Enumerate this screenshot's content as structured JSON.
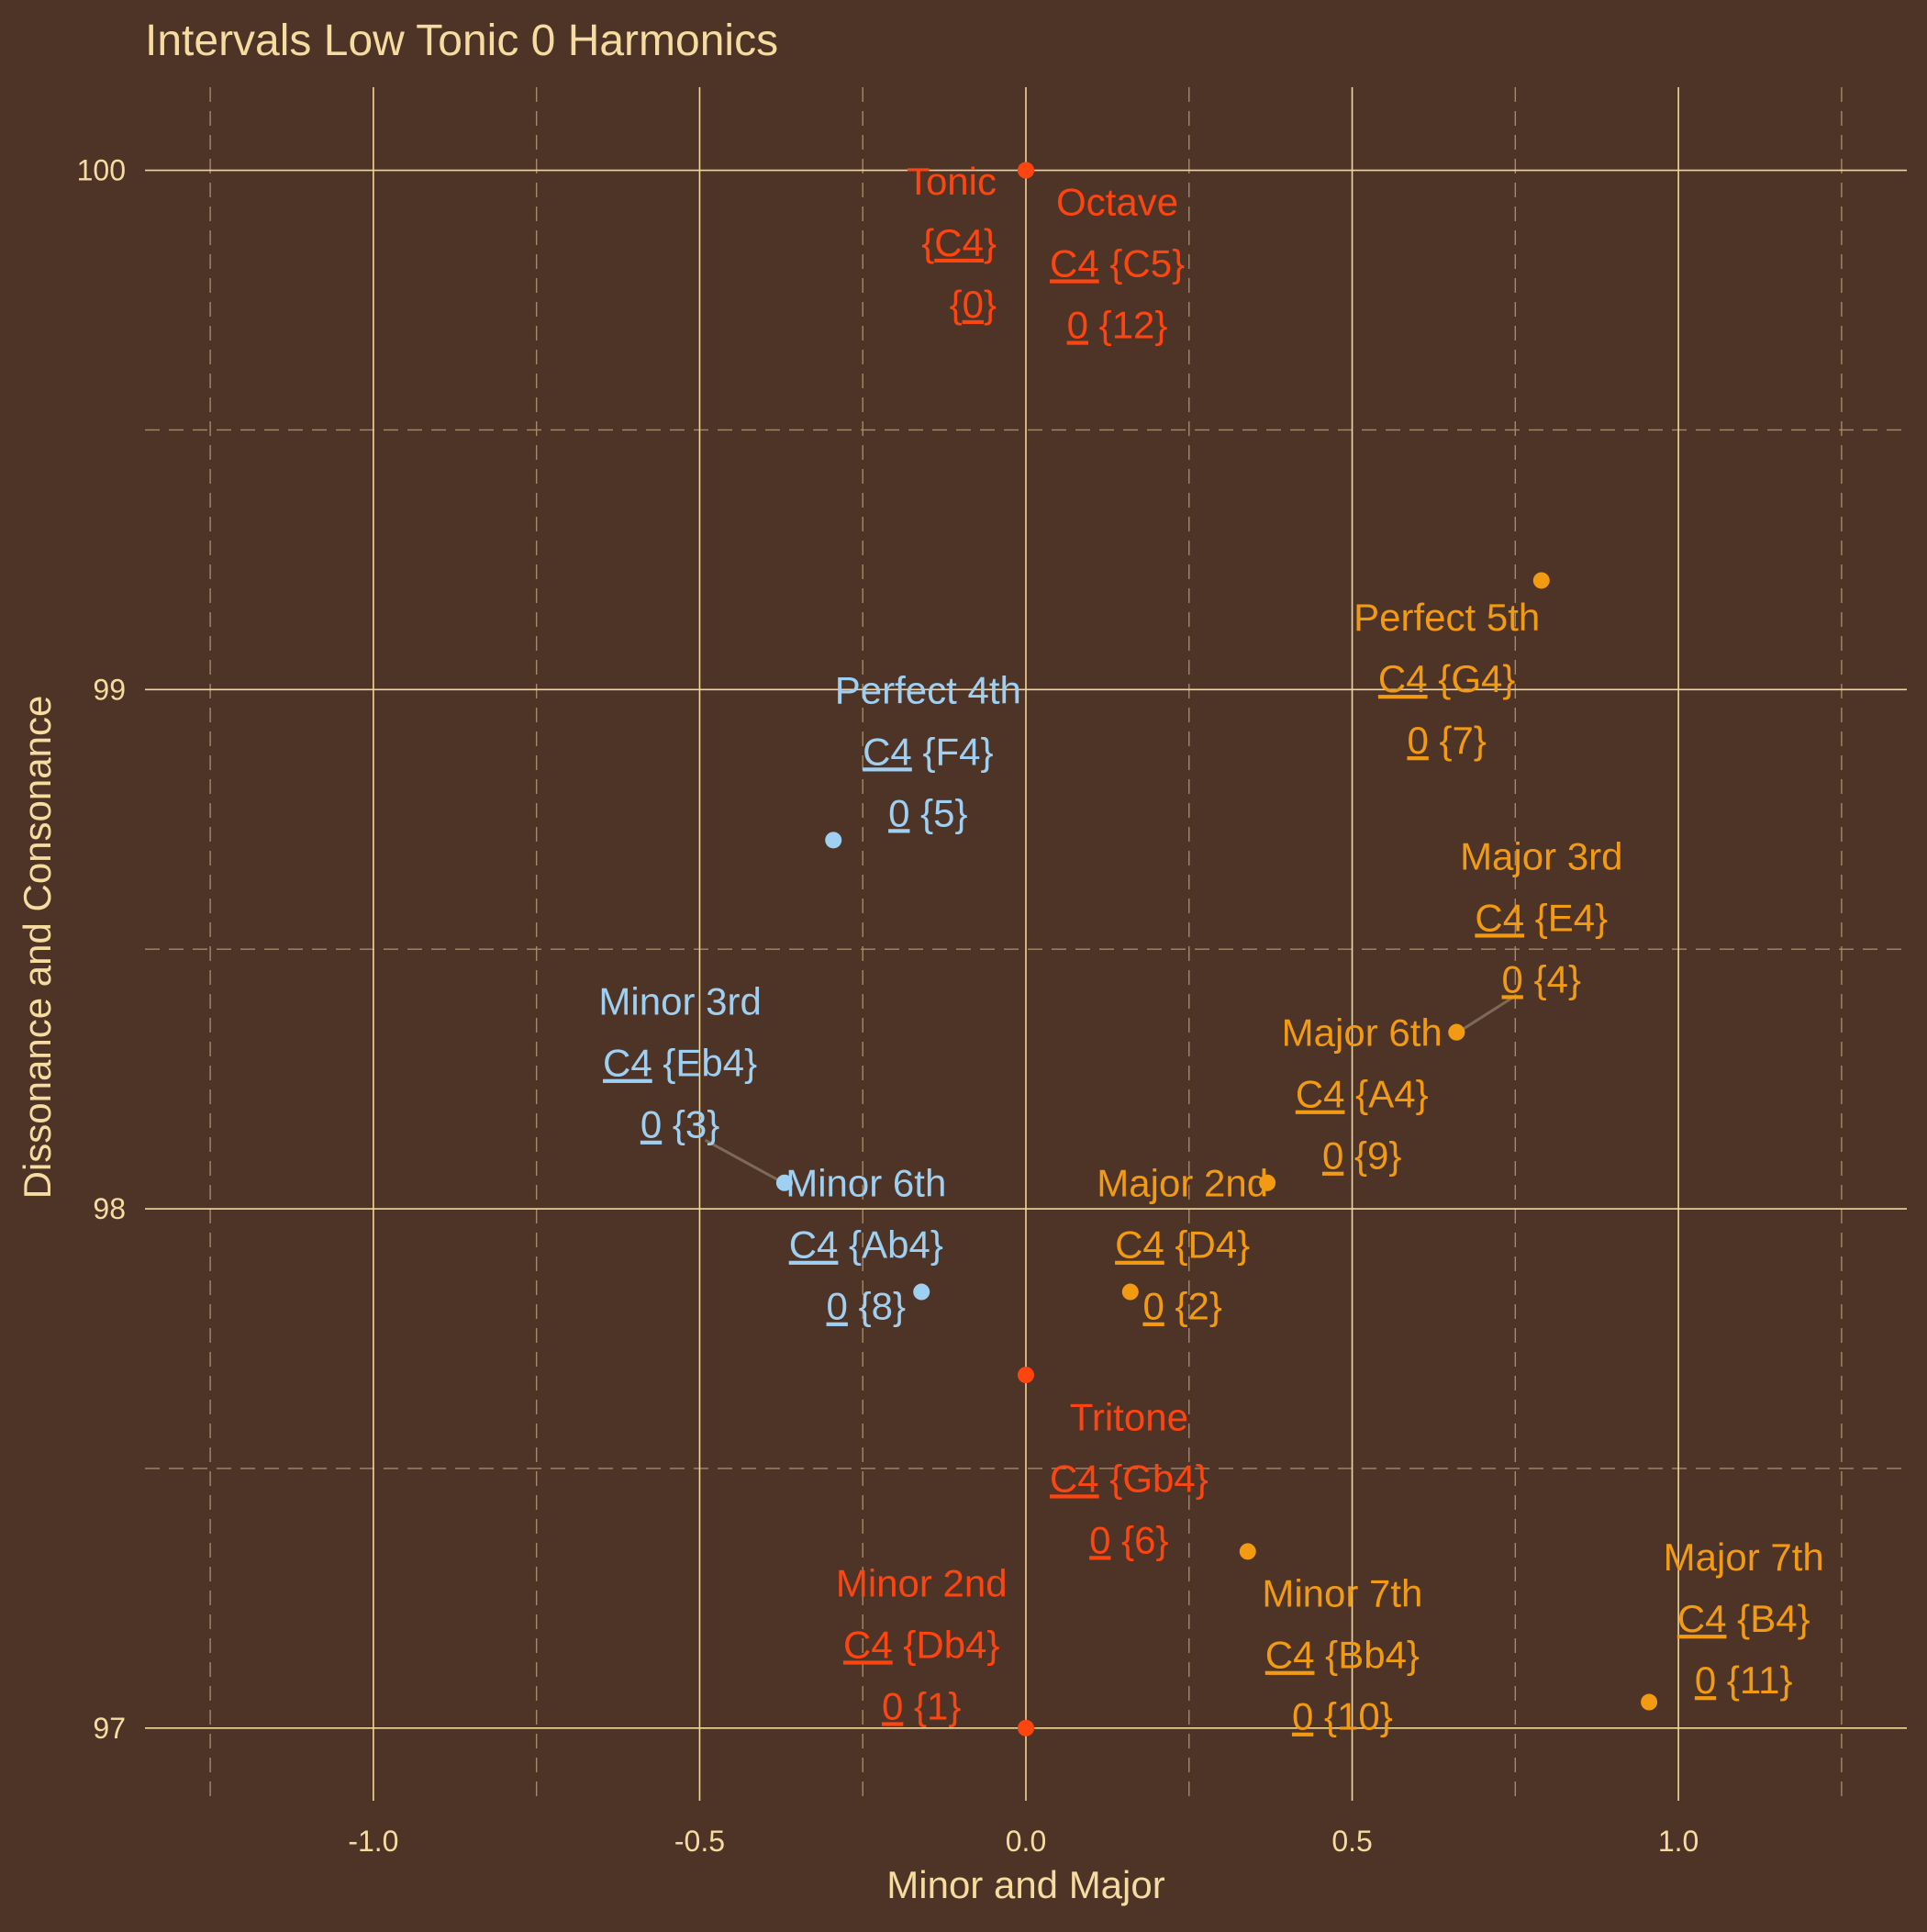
{
  "chart_data": {
    "type": "scatter",
    "title": "Intervals Low Tonic 0 Harmonics",
    "xlabel": "Minor and Major",
    "ylabel": "Dissonance and Consonance",
    "xlim": [
      -1.35,
      1.35
    ],
    "ylim": [
      96.86,
      100.16
    ],
    "x_ticks": [
      -1.0,
      -0.5,
      0.0,
      0.5,
      1.0
    ],
    "x_tick_labels": [
      "-1.0",
      "-0.5",
      "0.0",
      "0.5",
      "1.0"
    ],
    "y_ticks": [
      97,
      98,
      99,
      100
    ],
    "y_tick_labels": [
      "97",
      "98",
      "99",
      "100"
    ],
    "grid": true,
    "colors": {
      "background": "#4e3427",
      "text": "#f6dca0",
      "minor": "#9fd0f2",
      "major": "#f29a12",
      "neutral": "#fe4510"
    },
    "points": [
      {
        "name": "Tonic",
        "x": 0.0,
        "y": 100.0,
        "group": "neutral",
        "lines": [
          "Tonic",
          "{C4}",
          "{0}"
        ],
        "underline": [
          [
            1,
            1,
            3
          ],
          [
            2,
            1,
            2
          ]
        ],
        "anchor": "end",
        "lx": -0.045,
        "ly": 99.98
      },
      {
        "name": "Octave",
        "x": 0.0,
        "y": 100.0,
        "group": "neutral",
        "lines": [
          "Octave",
          "C4 {C5}",
          "0 {12}"
        ],
        "underline": [
          [
            1,
            0,
            2
          ],
          [
            2,
            0,
            1
          ]
        ],
        "anchor": "middle",
        "lx": 0.14,
        "ly": 99.94
      },
      {
        "name": "Perfect 5th",
        "x": 0.79,
        "y": 99.21,
        "group": "major",
        "lines": [
          "Perfect 5th",
          "C4 {G4}",
          "0 {7}"
        ],
        "underline": [
          [
            1,
            0,
            2
          ],
          [
            2,
            0,
            1
          ]
        ],
        "anchor": "middle",
        "lx": 0.645,
        "ly": 99.14
      },
      {
        "name": "Perfect 4th",
        "x": -0.295,
        "y": 98.71,
        "group": "minor",
        "lines": [
          "Perfect 4th",
          "C4 {F4}",
          "0 {5}"
        ],
        "underline": [
          [
            1,
            0,
            2
          ],
          [
            2,
            0,
            1
          ]
        ],
        "anchor": "middle",
        "lx": -0.15,
        "ly": 99.0
      },
      {
        "name": "Major 3rd",
        "x": 0.66,
        "y": 98.34,
        "group": "major",
        "lines": [
          "Major 3rd",
          "C4 {E4}",
          "0 {4}"
        ],
        "underline": [
          [
            1,
            0,
            2
          ],
          [
            2,
            0,
            1
          ]
        ],
        "anchor": "middle",
        "lx": 0.79,
        "ly": 98.68
      },
      {
        "name": "Major 6th",
        "x": 0.66,
        "y": 98.34,
        "group": "major",
        "lines": [
          "Major 6th",
          "C4 {A4}",
          "0 {9}"
        ],
        "underline": [
          [
            1,
            0,
            2
          ],
          [
            2,
            0,
            1
          ]
        ],
        "anchor": "middle",
        "lx": 0.515,
        "ly": 98.34
      },
      {
        "name": "Minor 3rd",
        "x": -0.37,
        "y": 98.05,
        "group": "minor",
        "lines": [
          "Minor 3rd",
          "C4 {Eb4}",
          "0 {3}"
        ],
        "underline": [
          [
            1,
            0,
            2
          ],
          [
            2,
            0,
            1
          ]
        ],
        "anchor": "middle",
        "lx": -0.53,
        "ly": 98.4
      },
      {
        "name": "Minor 6th",
        "x": -0.16,
        "y": 97.84,
        "group": "minor",
        "lines": [
          "Minor 6th",
          "C4 {Ab4}",
          "0 {8}"
        ],
        "underline": [
          [
            1,
            0,
            2
          ],
          [
            2,
            0,
            1
          ]
        ],
        "anchor": "middle",
        "lx": -0.245,
        "ly": 98.05
      },
      {
        "name": "Major 2nd",
        "x": 0.37,
        "y": 98.05,
        "group": "major",
        "lines": [
          "Major 2nd",
          "C4 {D4}",
          "0 {2}"
        ],
        "underline": [
          [
            1,
            0,
            2
          ],
          [
            2,
            0,
            1
          ]
        ],
        "anchor": "middle",
        "lx": 0.24,
        "ly": 98.05
      },
      {
        "name": "Minor 2nd marker",
        "x": 0.16,
        "y": 97.84,
        "group": "major",
        "lines": [],
        "underline": []
      },
      {
        "name": "Tritone",
        "x": 0.0,
        "y": 97.68,
        "group": "neutral",
        "lines": [
          "Tritone",
          "C4 {Gb4}",
          "0 {6}"
        ],
        "underline": [
          [
            1,
            0,
            2
          ],
          [
            2,
            0,
            1
          ]
        ],
        "anchor": "middle",
        "lx": 0.158,
        "ly": 97.6
      },
      {
        "name": "Minor 7th",
        "x": 0.34,
        "y": 97.34,
        "group": "major",
        "lines": [
          "Minor 7th",
          "C4 {Bb4}",
          "0 {10}"
        ],
        "underline": [
          [
            1,
            0,
            2
          ],
          [
            2,
            0,
            1
          ]
        ],
        "anchor": "middle",
        "lx": 0.485,
        "ly": 97.26
      },
      {
        "name": "Minor 2nd",
        "x": 0.0,
        "y": 97.0,
        "group": "neutral",
        "lines": [
          "Minor 2nd",
          "C4 {Db4}",
          "0 {1}"
        ],
        "underline": [
          [
            1,
            0,
            2
          ],
          [
            2,
            0,
            1
          ]
        ],
        "anchor": "middle",
        "lx": -0.16,
        "ly": 97.28
      },
      {
        "name": "Major 7th",
        "x": 0.955,
        "y": 97.05,
        "group": "major",
        "lines": [
          "Major 7th",
          "C4 {B4}",
          "0 {11}"
        ],
        "underline": [
          [
            1,
            0,
            2
          ],
          [
            2,
            0,
            1
          ]
        ],
        "anchor": "middle",
        "lx": 1.1,
        "ly": 97.33
      }
    ],
    "connectors": [
      {
        "from": "Major 3rd",
        "group": "major"
      },
      {
        "from": "Minor 3rd",
        "group": "minor"
      }
    ]
  }
}
